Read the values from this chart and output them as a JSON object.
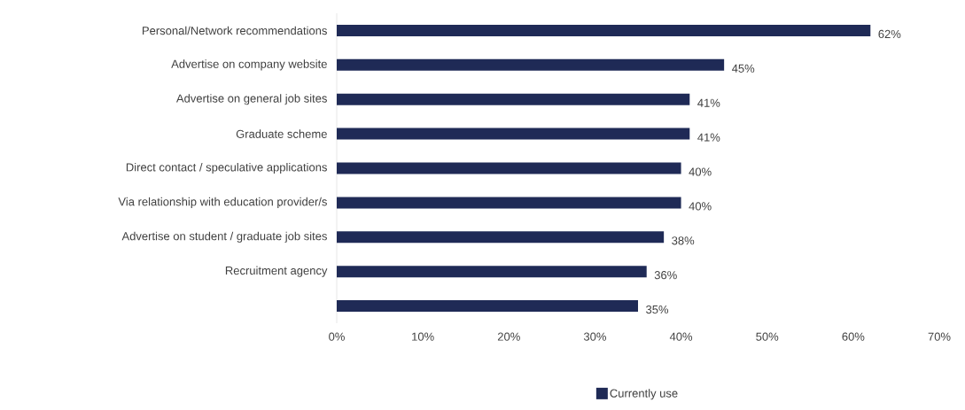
{
  "chart_data": {
    "type": "bar",
    "orientation": "horizontal",
    "categories": [
      "Personal/Network recommendations",
      "Advertise on company website",
      "Advertise on general job sites",
      "Graduate scheme",
      "Direct contact / speculative applications",
      "Via relationship with education provider/s",
      "Advertise on student / graduate job sites",
      "Recruitment agency",
      null
    ],
    "series": [
      {
        "name": "Currently use",
        "color": "#1f2a56",
        "values": [
          62,
          45,
          41,
          41,
          40,
          40,
          38,
          36,
          35
        ],
        "value_labels": [
          "62%",
          "45%",
          "41%",
          "41%",
          "40%",
          "40%",
          "38%",
          "36%",
          "35%"
        ]
      }
    ],
    "xlim": [
      0,
      70
    ],
    "xticks": [
      {
        "value": 0,
        "label": "0%"
      },
      {
        "value": 10,
        "label": "10%"
      },
      {
        "value": 20,
        "label": "20%"
      },
      {
        "value": 30,
        "label": "30%"
      },
      {
        "value": 40,
        "label": "40%"
      },
      {
        "value": 50,
        "label": "50%"
      },
      {
        "value": 60,
        "label": "60%"
      },
      {
        "value": 70,
        "label": "70%"
      }
    ],
    "grid": false,
    "legend": "bottom"
  }
}
